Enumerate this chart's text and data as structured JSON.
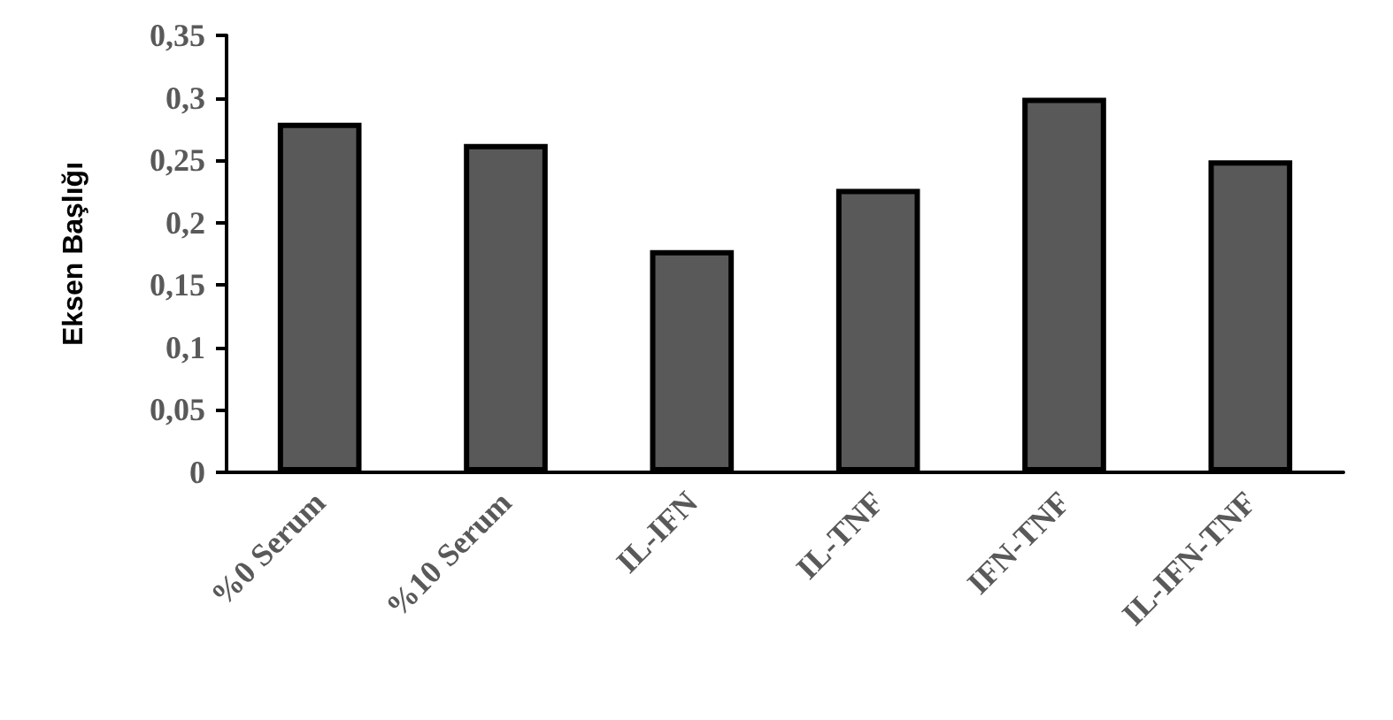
{
  "chart_data": {
    "type": "bar",
    "ylabel": "Eksen Başlığı",
    "categories": [
      "%0 Serum",
      "%10 Serum",
      "IL-IFN",
      "IL-TNF",
      "IFN-TNF",
      "IL-IFN-TNF"
    ],
    "values": [
      0.28,
      0.263,
      0.178,
      0.227,
      0.3,
      0.25
    ],
    "color": "#595959",
    "ylim": [
      0,
      0.35
    ],
    "yticks": [
      {
        "value": 0,
        "label": "0"
      },
      {
        "value": 0.05,
        "label": "0,05"
      },
      {
        "value": 0.1,
        "label": "0,1"
      },
      {
        "value": 0.15,
        "label": "0,15"
      },
      {
        "value": 0.2,
        "label": "0,2"
      },
      {
        "value": 0.25,
        "label": "0,25"
      },
      {
        "value": 0.3,
        "label": "0,3"
      },
      {
        "value": 0.35,
        "label": "0,35"
      }
    ],
    "grid": false
  }
}
